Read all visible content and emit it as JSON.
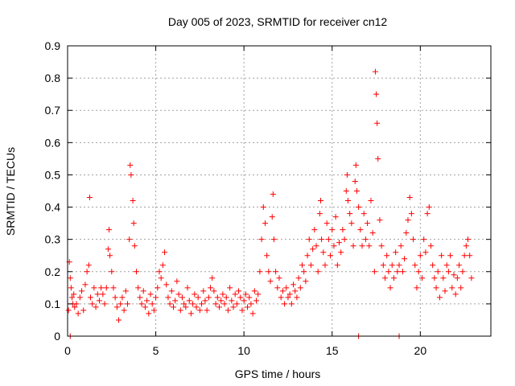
{
  "chart_data": {
    "type": "scatter",
    "title": "Day 005 of 2023, SRMTID for receiver cn12",
    "xlabel": "GPS time / hours",
    "ylabel": "SRMTID / TECUs",
    "xlim": [
      0,
      24
    ],
    "ylim": [
      0,
      0.9
    ],
    "xticks": [
      "0",
      "5",
      "10",
      "15",
      "20"
    ],
    "yticks": [
      "0",
      "0.1",
      "0.2",
      "0.3",
      "0.4",
      "0.5",
      "0.6",
      "0.7",
      "0.8",
      "0.9"
    ],
    "grid": true,
    "marker": "plus",
    "color": "#ff0000",
    "series": [
      {
        "name": "cn12",
        "points": [
          [
            0.05,
            0.08
          ],
          [
            0.1,
            0.23
          ],
          [
            0.15,
            0.18
          ],
          [
            0.2,
            0.15
          ],
          [
            0.25,
            0.12
          ],
          [
            0.3,
            0.1
          ],
          [
            0.35,
            0.13
          ],
          [
            0.4,
            0.09
          ],
          [
            0.5,
            0.1
          ],
          [
            0.6,
            0.07
          ],
          [
            0.7,
            0.12
          ],
          [
            0.8,
            0.14
          ],
          [
            0.9,
            0.08
          ],
          [
            1.0,
            0.16
          ],
          [
            1.1,
            0.2
          ],
          [
            1.2,
            0.22
          ],
          [
            1.25,
            0.43
          ],
          [
            1.3,
            0.12
          ],
          [
            1.4,
            0.1
          ],
          [
            1.5,
            0.15
          ],
          [
            1.6,
            0.09
          ],
          [
            1.7,
            0.13
          ],
          [
            1.8,
            0.11
          ],
          [
            1.9,
            0.15
          ],
          [
            2.0,
            0.13
          ],
          [
            2.1,
            0.1
          ],
          [
            2.2,
            0.15
          ],
          [
            2.3,
            0.27
          ],
          [
            2.35,
            0.33
          ],
          [
            2.4,
            0.25
          ],
          [
            2.5,
            0.2
          ],
          [
            2.6,
            0.15
          ],
          [
            2.7,
            0.12
          ],
          [
            2.8,
            0.09
          ],
          [
            2.9,
            0.05
          ],
          [
            3.0,
            0.1
          ],
          [
            3.1,
            0.12
          ],
          [
            3.2,
            0.08
          ],
          [
            3.3,
            0.14
          ],
          [
            3.4,
            0.1
          ],
          [
            3.5,
            0.3
          ],
          [
            3.55,
            0.53
          ],
          [
            3.6,
            0.5
          ],
          [
            3.7,
            0.42
          ],
          [
            3.75,
            0.35
          ],
          [
            3.8,
            0.28
          ],
          [
            3.9,
            0.2
          ],
          [
            4.0,
            0.15
          ],
          [
            4.1,
            0.12
          ],
          [
            4.2,
            0.1
          ],
          [
            4.3,
            0.14
          ],
          [
            4.4,
            0.09
          ],
          [
            4.5,
            0.11
          ],
          [
            4.6,
            0.07
          ],
          [
            4.7,
            0.13
          ],
          [
            4.8,
            0.1
          ],
          [
            4.9,
            0.08
          ],
          [
            5.0,
            0.12
          ],
          [
            5.1,
            0.15
          ],
          [
            5.2,
            0.2
          ],
          [
            5.3,
            0.18
          ],
          [
            5.4,
            0.22
          ],
          [
            5.5,
            0.26
          ],
          [
            5.6,
            0.16
          ],
          [
            5.7,
            0.12
          ],
          [
            5.8,
            0.1
          ],
          [
            5.9,
            0.14
          ],
          [
            6.0,
            0.09
          ],
          [
            6.1,
            0.11
          ],
          [
            6.2,
            0.17
          ],
          [
            6.3,
            0.13
          ],
          [
            6.4,
            0.08
          ],
          [
            6.5,
            0.12
          ],
          [
            6.6,
            0.1
          ],
          [
            6.7,
            0.09
          ],
          [
            6.8,
            0.15
          ],
          [
            6.9,
            0.11
          ],
          [
            7.0,
            0.07
          ],
          [
            7.1,
            0.1
          ],
          [
            7.2,
            0.13
          ],
          [
            7.3,
            0.09
          ],
          [
            7.4,
            0.12
          ],
          [
            7.5,
            0.08
          ],
          [
            7.6,
            0.1
          ],
          [
            7.7,
            0.14
          ],
          [
            7.8,
            0.11
          ],
          [
            7.9,
            0.08
          ],
          [
            8.0,
            0.12
          ],
          [
            8.1,
            0.15
          ],
          [
            8.2,
            0.18
          ],
          [
            8.3,
            0.14
          ],
          [
            8.4,
            0.1
          ],
          [
            8.5,
            0.12
          ],
          [
            8.6,
            0.09
          ],
          [
            8.7,
            0.11
          ],
          [
            8.8,
            0.13
          ],
          [
            8.9,
            0.1
          ],
          [
            9.0,
            0.12
          ],
          [
            9.1,
            0.08
          ],
          [
            9.2,
            0.15
          ],
          [
            9.3,
            0.11
          ],
          [
            9.4,
            0.09
          ],
          [
            9.5,
            0.13
          ],
          [
            9.6,
            0.1
          ],
          [
            9.7,
            0.14
          ],
          [
            9.8,
            0.12
          ],
          [
            9.9,
            0.08
          ],
          [
            10.0,
            0.11
          ],
          [
            10.1,
            0.13
          ],
          [
            10.2,
            0.09
          ],
          [
            10.3,
            0.12
          ],
          [
            10.4,
            0.1
          ],
          [
            10.5,
            0.07
          ],
          [
            10.6,
            0.14
          ],
          [
            10.7,
            0.11
          ],
          [
            10.8,
            0.13
          ],
          [
            10.9,
            0.2
          ],
          [
            11.0,
            0.3
          ],
          [
            11.1,
            0.4
          ],
          [
            11.2,
            0.35
          ],
          [
            11.3,
            0.25
          ],
          [
            11.4,
            0.2
          ],
          [
            11.5,
            0.17
          ],
          [
            11.6,
            0.37
          ],
          [
            11.65,
            0.44
          ],
          [
            11.7,
            0.3
          ],
          [
            11.8,
            0.2
          ],
          [
            11.9,
            0.15
          ],
          [
            12.0,
            0.18
          ],
          [
            12.1,
            0.12
          ],
          [
            12.2,
            0.14
          ],
          [
            12.3,
            0.1
          ],
          [
            12.4,
            0.15
          ],
          [
            12.5,
            0.12
          ],
          [
            12.6,
            0.13
          ],
          [
            12.7,
            0.1
          ],
          [
            12.8,
            0.16
          ],
          [
            12.9,
            0.14
          ],
          [
            13.0,
            0.12
          ],
          [
            13.1,
            0.18
          ],
          [
            13.2,
            0.15
          ],
          [
            13.3,
            0.22
          ],
          [
            13.4,
            0.2
          ],
          [
            13.5,
            0.17
          ],
          [
            13.6,
            0.25
          ],
          [
            13.7,
            0.3
          ],
          [
            13.8,
            0.22
          ],
          [
            13.9,
            0.27
          ],
          [
            14.0,
            0.33
          ],
          [
            14.1,
            0.28
          ],
          [
            14.2,
            0.2
          ],
          [
            14.3,
            0.38
          ],
          [
            14.35,
            0.42
          ],
          [
            14.4,
            0.3
          ],
          [
            14.5,
            0.26
          ],
          [
            14.6,
            0.22
          ],
          [
            14.7,
            0.35
          ],
          [
            14.8,
            0.3
          ],
          [
            14.9,
            0.25
          ],
          [
            15.0,
            0.33
          ],
          [
            15.1,
            0.28
          ],
          [
            15.2,
            0.37
          ],
          [
            15.3,
            0.22
          ],
          [
            15.4,
            0.29
          ],
          [
            15.5,
            0.26
          ],
          [
            15.6,
            0.33
          ],
          [
            15.7,
            0.3
          ],
          [
            15.8,
            0.45
          ],
          [
            15.85,
            0.5
          ],
          [
            15.9,
            0.42
          ],
          [
            16.0,
            0.38
          ],
          [
            16.1,
            0.35
          ],
          [
            16.2,
            0.28
          ],
          [
            16.3,
            0.48
          ],
          [
            16.35,
            0.53
          ],
          [
            16.4,
            0.45
          ],
          [
            16.5,
            0.4
          ],
          [
            16.6,
            0.33
          ],
          [
            16.7,
            0.28
          ],
          [
            16.8,
            0.38
          ],
          [
            16.9,
            0.3
          ],
          [
            17.0,
            0.35
          ],
          [
            17.1,
            0.28
          ],
          [
            17.2,
            0.42
          ],
          [
            17.3,
            0.32
          ],
          [
            17.4,
            0.2
          ],
          [
            17.45,
            0.82
          ],
          [
            17.5,
            0.75
          ],
          [
            17.55,
            0.66
          ],
          [
            17.6,
            0.55
          ],
          [
            17.7,
            0.36
          ],
          [
            17.8,
            0.28
          ],
          [
            17.9,
            0.22
          ],
          [
            18.0,
            0.18
          ],
          [
            18.1,
            0.25
          ],
          [
            18.2,
            0.2
          ],
          [
            18.3,
            0.15
          ],
          [
            18.4,
            0.22
          ],
          [
            18.5,
            0.18
          ],
          [
            18.6,
            0.26
          ],
          [
            18.7,
            0.2
          ],
          [
            18.8,
            0.22
          ],
          [
            18.9,
            0.28
          ],
          [
            19.0,
            0.2
          ],
          [
            19.1,
            0.24
          ],
          [
            19.2,
            0.32
          ],
          [
            19.3,
            0.36
          ],
          [
            19.4,
            0.43
          ],
          [
            19.5,
            0.38
          ],
          [
            19.6,
            0.3
          ],
          [
            19.7,
            0.22
          ],
          [
            19.8,
            0.15
          ],
          [
            19.9,
            0.2
          ],
          [
            20.0,
            0.25
          ],
          [
            20.1,
            0.18
          ],
          [
            20.2,
            0.3
          ],
          [
            20.3,
            0.26
          ],
          [
            20.4,
            0.38
          ],
          [
            20.5,
            0.4
          ],
          [
            20.6,
            0.28
          ],
          [
            20.7,
            0.22
          ],
          [
            20.8,
            0.18
          ],
          [
            20.9,
            0.15
          ],
          [
            21.0,
            0.2
          ],
          [
            21.1,
            0.12
          ],
          [
            21.2,
            0.25
          ],
          [
            21.3,
            0.18
          ],
          [
            21.4,
            0.14
          ],
          [
            21.5,
            0.22
          ],
          [
            21.6,
            0.2
          ],
          [
            21.7,
            0.25
          ],
          [
            21.8,
            0.15
          ],
          [
            21.9,
            0.19
          ],
          [
            22.0,
            0.13
          ],
          [
            22.1,
            0.18
          ],
          [
            22.2,
            0.22
          ],
          [
            22.3,
            0.15
          ],
          [
            22.4,
            0.2
          ],
          [
            22.5,
            0.25
          ],
          [
            22.6,
            0.28
          ],
          [
            22.7,
            0.3
          ],
          [
            22.8,
            0.25
          ],
          [
            22.9,
            0.18
          ],
          [
            16.5,
            0.0
          ],
          [
            18.8,
            0.0
          ],
          [
            0.15,
            0.0
          ]
        ]
      }
    ]
  }
}
